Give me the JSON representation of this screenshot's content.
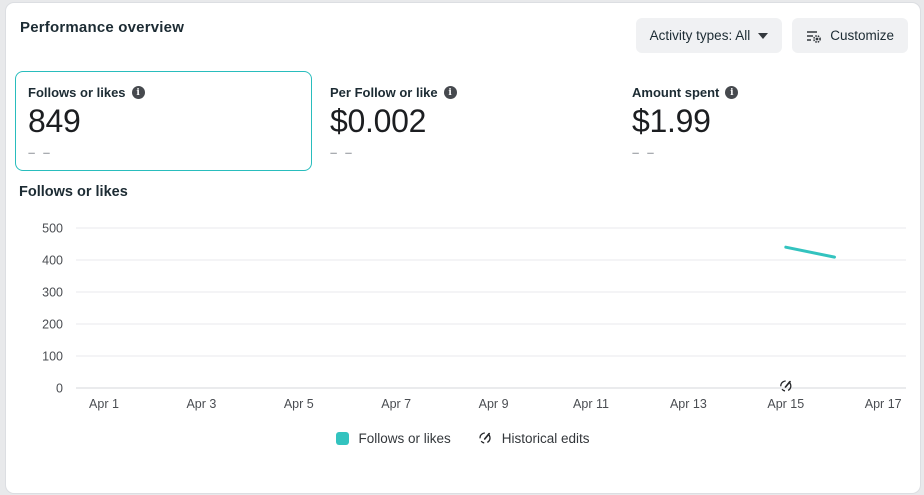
{
  "colors": {
    "teal": "#33c3bf",
    "selected_card_border": "#29bdbd",
    "grid": "#e9eaec",
    "axis_line": "#d5d7db",
    "axis_text": "#4a4d52"
  },
  "header": {
    "title": "Performance overview",
    "activity_filter_label": "Activity types: All",
    "customize_label": "Customize"
  },
  "metrics": [
    {
      "label": "Follows or likes",
      "value": "849",
      "sub": "– –",
      "selected": true
    },
    {
      "label": "Per Follow or like",
      "value": "$0.002",
      "sub": "– –",
      "selected": false
    },
    {
      "label": "Amount spent",
      "value": "$1.99",
      "sub": "– –",
      "selected": false
    }
  ],
  "chart_data": {
    "type": "line",
    "title": "Follows or likes",
    "x_ticks": [
      "Apr 1",
      "Apr 3",
      "Apr 5",
      "Apr 7",
      "Apr 9",
      "Apr 11",
      "Apr 13",
      "Apr 15",
      "Apr 17"
    ],
    "y_ticks": [
      0,
      100,
      200,
      300,
      400,
      500
    ],
    "ylim": [
      0,
      500
    ],
    "grid": true,
    "legend_position": "bottom",
    "series": [
      {
        "name": "Follows or likes",
        "color": "#33c3bf",
        "points": [
          {
            "x": "Apr 15",
            "y": 440
          },
          {
            "x": "Apr 16",
            "y": 409
          }
        ]
      }
    ],
    "historical_edits": [
      {
        "x": "Apr 15"
      }
    ]
  },
  "legend": [
    {
      "label": "Follows or likes"
    },
    {
      "label": "Historical edits"
    }
  ]
}
